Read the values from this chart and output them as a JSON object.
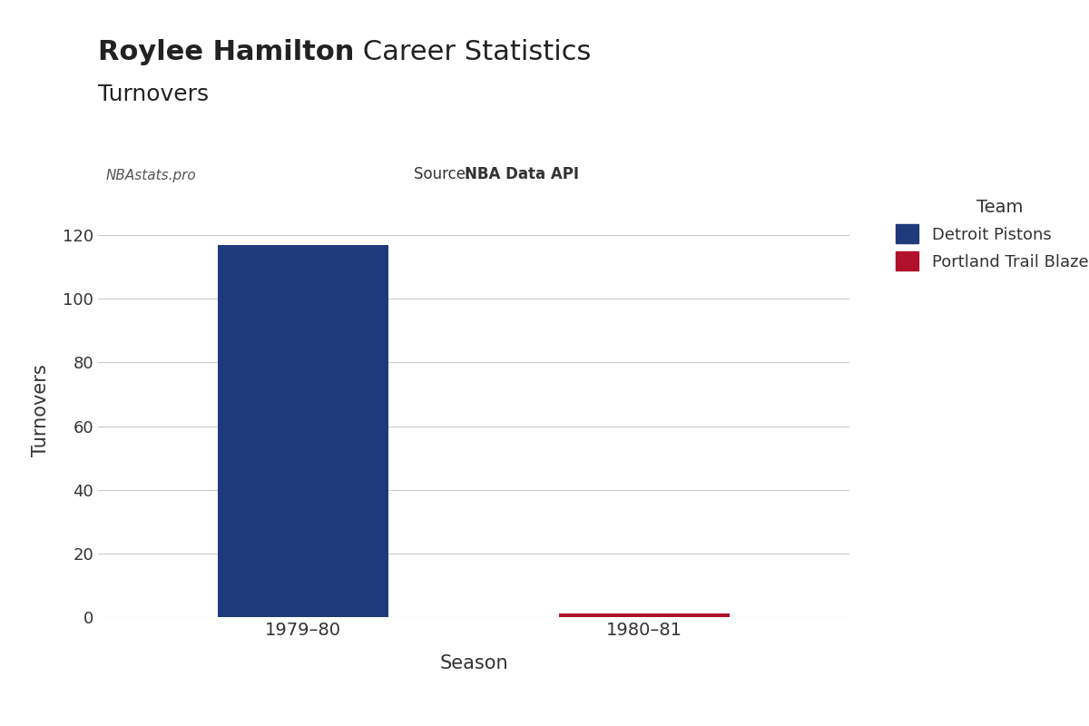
{
  "seasons": [
    "1979–80",
    "1980–81"
  ],
  "values": [
    117,
    1
  ],
  "teams": [
    "Detroit Pistons",
    "Portland Trail Blazers"
  ],
  "bar_colors": [
    "#1f3a7a",
    "#b0102a"
  ],
  "title_bold": "Roylee Hamilton",
  "title_normal": " Career Statistics",
  "subtitle": "Turnovers",
  "xlabel": "Season",
  "ylabel": "Turnovers",
  "ylim": [
    0,
    130
  ],
  "yticks": [
    0,
    20,
    40,
    60,
    80,
    100,
    120
  ],
  "watermark": "NBAstats.pro",
  "source_label": "Source: ",
  "source_bold": "NBA Data API",
  "legend_title": "Team",
  "background_color": "#ffffff",
  "grid_color": "#cccccc",
  "text_color": "#333333"
}
